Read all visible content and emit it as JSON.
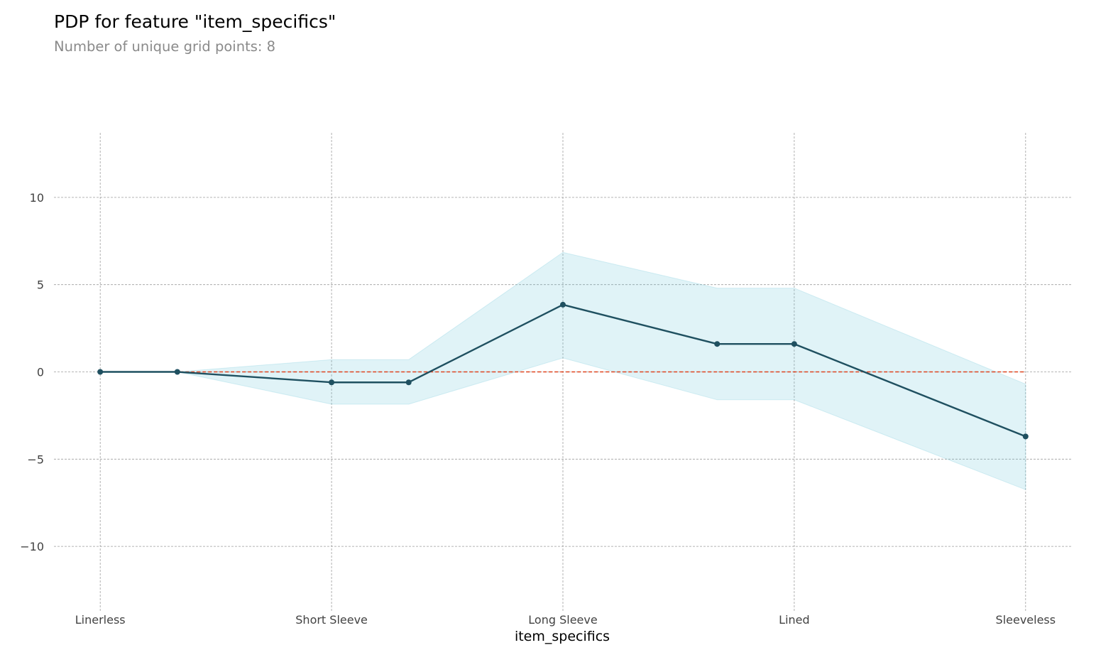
{
  "title": "PDP for feature \"item_specifics\"",
  "subtitle": "Number of unique grid points: 8",
  "colors": {
    "line": "#1f5060",
    "band": "#66c2d7",
    "baseline": "#e0431e",
    "grid": "#9e9e9e",
    "text": "#424242"
  },
  "chart_data": {
    "type": "line",
    "xlabel": "item_specifics",
    "ylabel": "",
    "ylim": [
      -13.7,
      13.7
    ],
    "yticks": [
      10,
      5,
      0,
      -5,
      -10
    ],
    "ytick_labels": [
      "10",
      "5",
      "0",
      "−5",
      "−10"
    ],
    "xticks": [
      0,
      3,
      6,
      9,
      12
    ],
    "xtick_labels": [
      "Linerless",
      "Short Sleeve",
      "Long Sleeve",
      "Lined",
      "Sleeveless"
    ],
    "xlim": [
      -0.6,
      12.6
    ],
    "grid": true,
    "series": [
      {
        "x": [
          0,
          1,
          3,
          4,
          6,
          8,
          9,
          12
        ],
        "values": [
          0,
          0,
          -0.6,
          -0.6,
          3.85,
          1.6,
          1.6,
          -3.7
        ],
        "lower": [
          0,
          0,
          -1.85,
          -1.85,
          0.8,
          -1.6,
          -1.6,
          -6.75
        ],
        "upper": [
          0,
          0,
          0.7,
          0.7,
          6.85,
          4.8,
          4.8,
          -0.7
        ]
      }
    ],
    "baseline": 0
  }
}
